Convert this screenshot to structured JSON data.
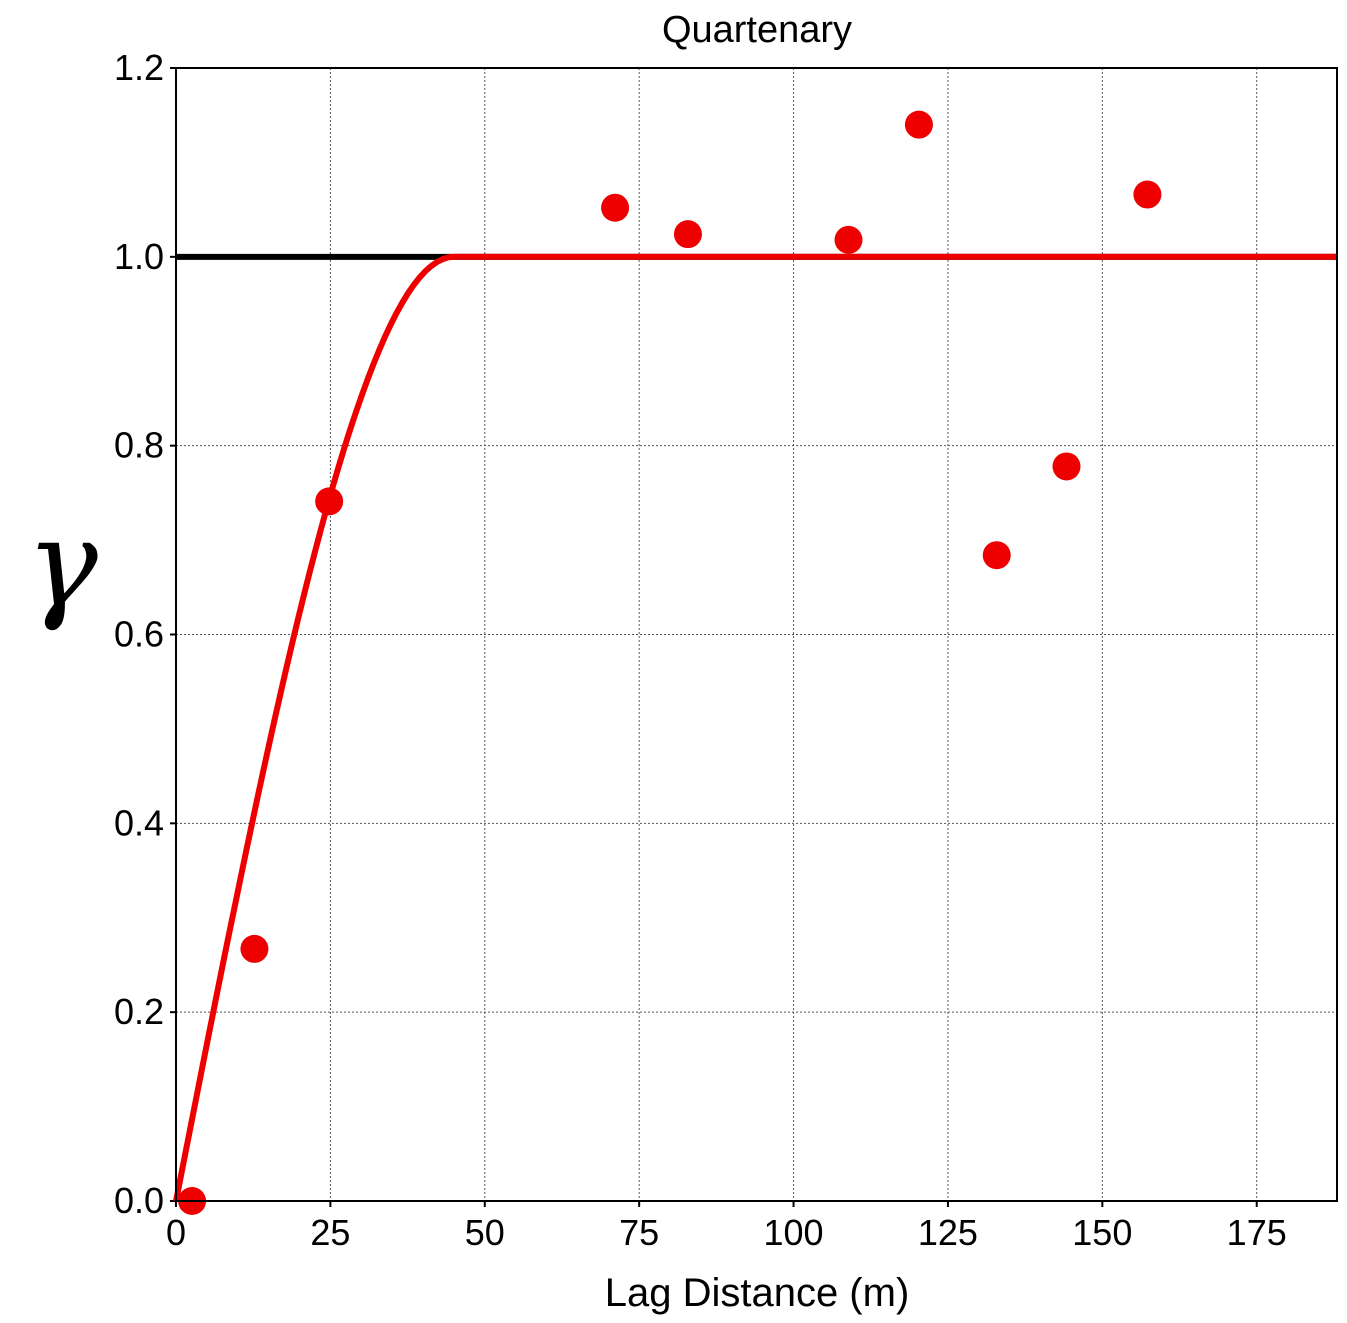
{
  "chart_data": {
    "type": "scatter",
    "title": "Quartenary",
    "xlabel": "Lag Distance (m)",
    "ylabel": "γ",
    "xlim": [
      0,
      188
    ],
    "ylim": [
      0,
      1.2
    ],
    "xticks": [
      0,
      25,
      50,
      75,
      100,
      125,
      150,
      175
    ],
    "xtick_labels": [
      "0",
      "25",
      "50",
      "75",
      "100",
      "125",
      "150",
      "175"
    ],
    "yticks": [
      0,
      0.2,
      0.4,
      0.6,
      0.8,
      1.0,
      1.2
    ],
    "ytick_labels": [
      "0.0",
      "0.2",
      "0.4",
      "0.6",
      "0.8",
      "1.0",
      "1.2"
    ],
    "grid": true,
    "sill": 1.0,
    "model": {
      "type": "spherical",
      "range": 45,
      "sill": 1.0,
      "nugget": 0
    },
    "points": [
      {
        "x": 2.6,
        "y": 0.0
      },
      {
        "x": 12.7,
        "y": 0.267
      },
      {
        "x": 24.8,
        "y": 0.741
      },
      {
        "x": 71.1,
        "y": 1.052
      },
      {
        "x": 82.9,
        "y": 1.024
      },
      {
        "x": 108.9,
        "y": 1.018
      },
      {
        "x": 120.3,
        "y": 1.14
      },
      {
        "x": 132.9,
        "y": 0.684
      },
      {
        "x": 144.2,
        "y": 0.778
      },
      {
        "x": 157.3,
        "y": 1.066
      }
    ],
    "colors": {
      "points": "#ee0000",
      "model": "#ee0000",
      "sill": "#000000",
      "grid": "#555555"
    }
  }
}
